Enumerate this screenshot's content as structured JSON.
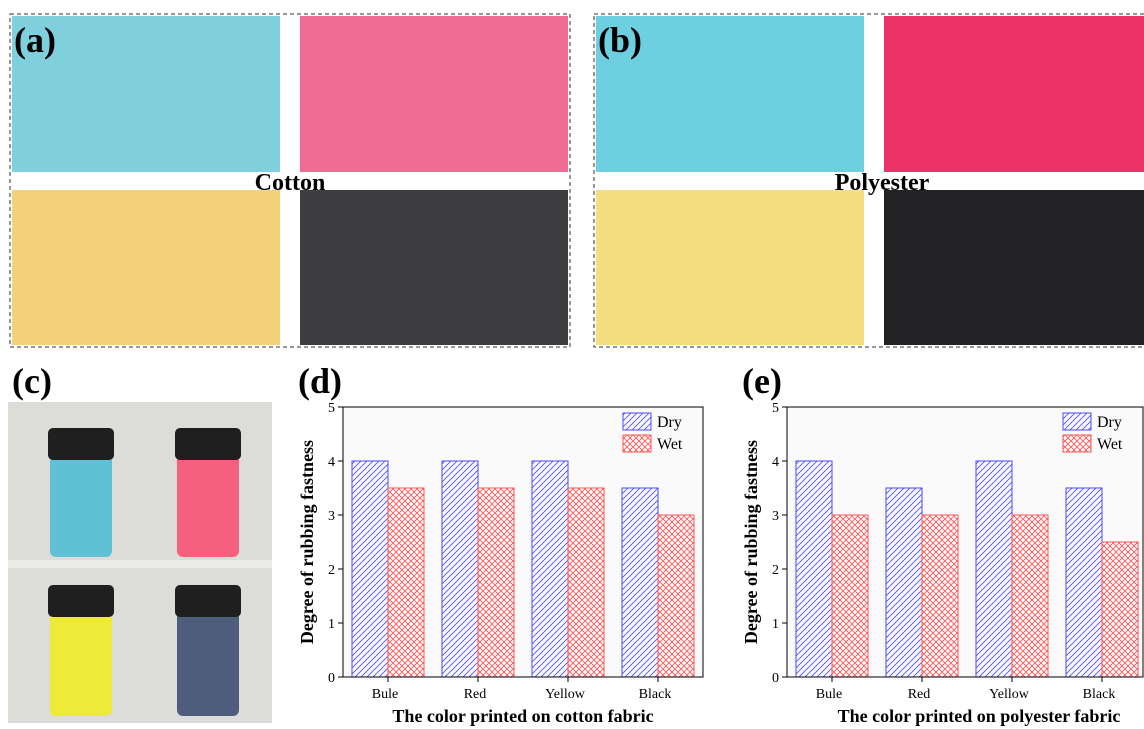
{
  "figure": {
    "panel_labels": [
      "(a)",
      "(b)",
      "(c)"
    ],
    "fabric_labels": [
      "Cotton",
      "Polyester"
    ]
  },
  "chart_data": [
    {
      "type": "bar",
      "label": "(d)",
      "y_label": "Degree of rubbing fastness",
      "x_label": "The color printed on cotton fabric",
      "categories": [
        "Bule",
        "Red",
        "Yellow",
        "Black"
      ],
      "series": [
        {
          "name": "Dry",
          "color": "#4b4bff",
          "values": [
            4,
            4,
            4,
            3.5
          ]
        },
        {
          "name": "Wet",
          "color": "#ff5252",
          "values": [
            3.5,
            3.5,
            3.5,
            3
          ]
        }
      ],
      "ylim": [
        0,
        5
      ],
      "yticks": [
        0,
        1,
        2,
        3,
        4,
        5
      ],
      "legend": "top-right"
    },
    {
      "type": "bar",
      "label": "(e)",
      "y_label": "Degree of rubbing fastness",
      "x_label": "The color printed on polyester fabric",
      "categories": [
        "Bule",
        "Red",
        "Yellow",
        "Black"
      ],
      "series": [
        {
          "name": "Dry",
          "color": "#4b4bff",
          "values": [
            4,
            3.5,
            4,
            3.5
          ]
        },
        {
          "name": "Wet",
          "color": "#ff5252",
          "values": [
            3,
            3,
            3,
            2.5
          ]
        }
      ],
      "ylim": [
        0,
        5
      ],
      "yticks": [
        0,
        1,
        2,
        3,
        4,
        5
      ],
      "legend": "top-right"
    }
  ]
}
